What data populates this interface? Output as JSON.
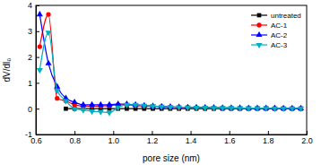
{
  "chart_data": {
    "type": "line",
    "x_label": "pore size (nm)",
    "y_label": "dV/dl₀",
    "x": [
      0.62,
      0.665,
      0.71,
      0.755,
      0.8,
      0.845,
      0.89,
      0.935,
      0.98,
      1.025,
      1.07,
      1.115,
      1.16,
      1.205,
      1.25,
      1.295,
      1.34,
      1.385,
      1.43,
      1.475,
      1.52,
      1.565,
      1.61,
      1.655,
      1.7,
      1.745,
      1.79,
      1.835,
      1.88,
      1.925,
      1.97
    ],
    "series": [
      {
        "name": "untreated",
        "color": "#000000",
        "marker": "square",
        "values": [
          null,
          null,
          null,
          0,
          0,
          0,
          0,
          0,
          0,
          0,
          0,
          0,
          0,
          0,
          0,
          0,
          0,
          0,
          0,
          0,
          0,
          0,
          0,
          0,
          0,
          0,
          0,
          0,
          0,
          0,
          0
        ]
      },
      {
        "name": "AC-1",
        "color": "#ff0000",
        "marker": "circle",
        "values": [
          2.4,
          3.65,
          0.4,
          0.3,
          0.15,
          0.1,
          0.1,
          0.1,
          0.12,
          0.15,
          0.15,
          0.12,
          0.1,
          0.1,
          0.08,
          0.06,
          0.05,
          0.05,
          0.04,
          0.04,
          0.03,
          0.03,
          0.03,
          0.02,
          0.02,
          0.02,
          0.02,
          0.01,
          0.01,
          0.01,
          0.01
        ]
      },
      {
        "name": "AC-2",
        "color": "#0000ff",
        "marker": "triangle-up",
        "values": [
          3.65,
          1.75,
          0.85,
          0.4,
          0.25,
          0.15,
          0.15,
          0.15,
          0.15,
          0.18,
          0.18,
          0.15,
          0.12,
          0.1,
          0.08,
          0.07,
          0.06,
          0.05,
          0.05,
          0.04,
          0.04,
          0.03,
          0.03,
          0.03,
          0.02,
          0.02,
          0.02,
          0.02,
          0.01,
          0.01,
          0.01
        ]
      },
      {
        "name": "AC-3",
        "color": "#00b0c0",
        "marker": "triangle-down",
        "values": [
          1.5,
          2.95,
          0.7,
          0.3,
          0.0,
          -0.05,
          -0.1,
          -0.12,
          -0.15,
          0.05,
          0.15,
          0.15,
          0.12,
          0.1,
          0.08,
          0.07,
          0.06,
          0.05,
          0.04,
          0.04,
          0.03,
          0.03,
          0.03,
          0.02,
          0.02,
          0.02,
          0.02,
          0.01,
          0.01,
          0.01,
          0.01
        ]
      }
    ],
    "xlim": [
      0.6,
      2.0
    ],
    "ylim": [
      -1,
      4
    ],
    "xticks": [
      0.6,
      0.8,
      {
        "value": 1.0,
        "label": "1.0"
      },
      1.2,
      1.4,
      1.6,
      1.8,
      {
        "value": 2.0,
        "label": "2.0"
      }
    ],
    "yticks": [
      -1,
      0,
      1,
      2,
      3,
      4
    ],
    "legend": "upper right",
    "grid": false
  }
}
